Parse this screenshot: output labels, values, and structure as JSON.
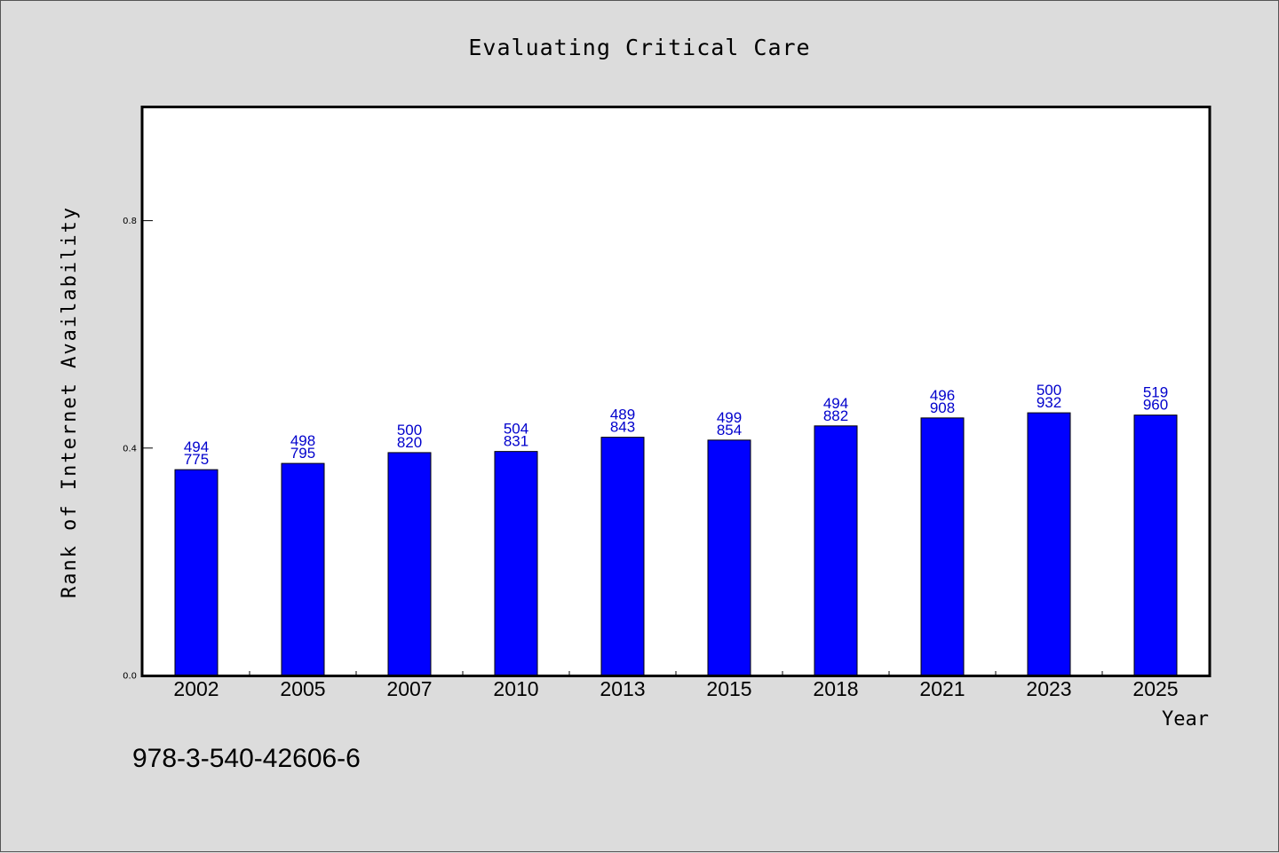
{
  "chart_data": {
    "type": "bar",
    "title": "Evaluating Critical Care",
    "xlabel": "Year",
    "ylabel": "Rank of Internet Availability",
    "categories": [
      "2002",
      "2005",
      "2007",
      "2010",
      "2013",
      "2015",
      "2018",
      "2021",
      "2023",
      "2025"
    ],
    "values": [
      0.362,
      0.373,
      0.392,
      0.394,
      0.419,
      0.414,
      0.439,
      0.453,
      0.462,
      0.458
    ],
    "data_labels_top": [
      "494",
      "498",
      "500",
      "504",
      "489",
      "499",
      "494",
      "496",
      "500",
      "519"
    ],
    "data_labels_bottom": [
      "775",
      "795",
      "820",
      "831",
      "843",
      "854",
      "882",
      "908",
      "932",
      "960"
    ],
    "yticks": [
      "0.0",
      "0.4",
      "0.8"
    ],
    "ylim": [
      0,
      1.0
    ],
    "grid": false,
    "legend": "none",
    "bar_color": "#0000ff",
    "label_color": "#0000cc",
    "background_color": "#dcdcdc",
    "plot_background_color": "#ffffff"
  },
  "footer": {
    "isbn": "978-3-540-42606-6"
  }
}
